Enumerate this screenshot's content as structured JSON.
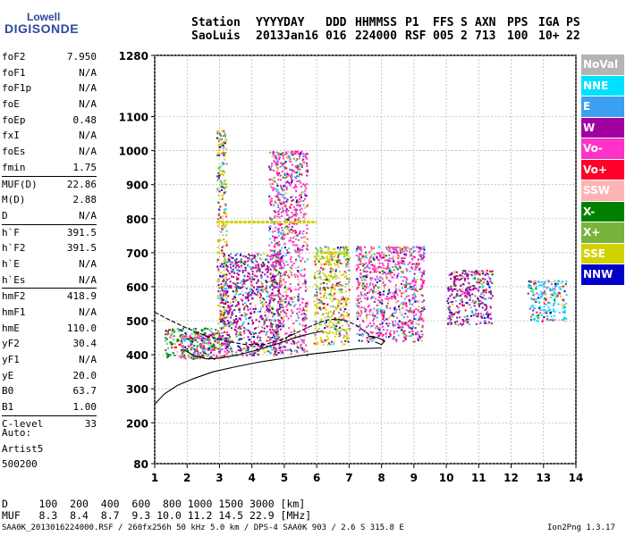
{
  "logo": {
    "line1": "Lowell",
    "line2": "DIGISONDE"
  },
  "header": {
    "labels": [
      {
        "text": "Station",
        "row": 0,
        "x": 0
      },
      {
        "text": "YYYY",
        "row": 0,
        "x": 1
      },
      {
        "text": "DAY",
        "row": 0,
        "x": 2
      },
      {
        "text": "DDD",
        "row": 0,
        "x": 3
      },
      {
        "text": "HHMMSS",
        "row": 0,
        "x": 4
      },
      {
        "text": "P1",
        "row": 0,
        "x": 5
      },
      {
        "text": "FFS",
        "row": 0,
        "x": 6
      },
      {
        "text": "S",
        "row": 0,
        "x": 7
      },
      {
        "text": "AXN",
        "row": 0,
        "x": 8
      },
      {
        "text": "PPS",
        "row": 0,
        "x": 9
      },
      {
        "text": "IGA",
        "row": 0,
        "x": 10
      },
      {
        "text": "PS",
        "row": 0,
        "x": 11
      },
      {
        "text": "SaoLuis",
        "row": 1,
        "x": 0
      },
      {
        "text": "2013",
        "row": 1,
        "x": 1
      },
      {
        "text": "Jan16",
        "row": 1,
        "x": 2
      },
      {
        "text": "016",
        "row": 1,
        "x": 3
      },
      {
        "text": "224000",
        "row": 1,
        "x": 4
      },
      {
        "text": "RSF",
        "row": 1,
        "x": 5
      },
      {
        "text": "005",
        "row": 1,
        "x": 6
      },
      {
        "text": "2",
        "row": 1,
        "x": 7
      },
      {
        "text": "713",
        "row": 1,
        "x": 8
      },
      {
        "text": "100",
        "row": 1,
        "x": 9
      },
      {
        "text": "10+",
        "row": 1,
        "x": 10
      },
      {
        "text": "22",
        "row": 1,
        "x": 11
      }
    ]
  },
  "params": {
    "group1": [
      {
        "label": "foF2",
        "value": "7.950"
      },
      {
        "label": "foF1",
        "value": "N/A"
      },
      {
        "label": "foF1p",
        "value": "N/A"
      },
      {
        "label": "foE",
        "value": "N/A"
      },
      {
        "label": "foEp",
        "value": "0.48"
      },
      {
        "label": "fxI",
        "value": "N/A"
      },
      {
        "label": "foEs",
        "value": "N/A"
      },
      {
        "label": "fmin",
        "value": "1.75"
      }
    ],
    "group2": [
      {
        "label": "MUF(D)",
        "value": "22.86"
      },
      {
        "label": "M(D)",
        "value": "2.88"
      },
      {
        "label": "D",
        "value": "N/A"
      }
    ],
    "group3": [
      {
        "label": "h`F",
        "value": "391.5"
      },
      {
        "label": "h`F2",
        "value": "391.5"
      },
      {
        "label": "h`E",
        "value": "N/A"
      },
      {
        "label": "h`Es",
        "value": "N/A"
      }
    ],
    "group4": [
      {
        "label": "hmF2",
        "value": "418.9"
      },
      {
        "label": "hmF1",
        "value": "N/A"
      },
      {
        "label": "hmE",
        "value": "110.0"
      },
      {
        "label": "yF2",
        "value": "30.4"
      },
      {
        "label": "yF1",
        "value": "N/A"
      },
      {
        "label": "yE",
        "value": "20.0"
      },
      {
        "label": "B0",
        "value": "63.7"
      },
      {
        "label": "B1",
        "value": "1.00"
      }
    ],
    "group5": [
      {
        "label": "C-level",
        "value": "33"
      }
    ]
  },
  "auto": {
    "lines": [
      "Auto:",
      "Artist5",
      "500200"
    ]
  },
  "legend": [
    {
      "label": "NoVal",
      "color": "#b4b4b4"
    },
    {
      "label": "NNE",
      "color": "#00e0ff"
    },
    {
      "label": "E",
      "color": "#3ca0f0"
    },
    {
      "label": "W",
      "color": "#a000a0"
    },
    {
      "label": "Vo-",
      "color": "#ff32c8"
    },
    {
      "label": "Vo+",
      "color": "#ff0028"
    },
    {
      "label": "SSW",
      "color": "#ffb4b4"
    },
    {
      "label": "X-",
      "color": "#008000"
    },
    {
      "label": "X+",
      "color": "#78b43c"
    },
    {
      "label": "SSE",
      "color": "#d2d200"
    },
    {
      "label": "NNW",
      "color": "#0000c8"
    }
  ],
  "bottom": {
    "d_row": "D     100  200  400  600  800 1000 1500 3000 [km]",
    "muf_row": "MUF   8.3  8.4  8.7  9.3 10.0 11.2 14.5 22.9 [MHz]"
  },
  "footer": {
    "left": "SAA0K_2013016224000.RSF / 260fx256h 50 kHz 5.0 km / DPS-4 SAA0K 903 / 2.6 S 315.8 E",
    "right": "Ion2Png 1.3.17"
  },
  "chart_data": {
    "type": "scatter",
    "title": "",
    "xlabel": "",
    "ylabel": "",
    "xlim": [
      1,
      14
    ],
    "ylim": [
      80,
      1280
    ],
    "x_ticks": [
      1,
      2,
      3,
      4,
      5,
      6,
      7,
      8,
      9,
      10,
      11,
      12,
      13,
      14
    ],
    "y_ticks": [
      80,
      200,
      300,
      400,
      500,
      600,
      700,
      800,
      900,
      1000,
      1100,
      1280
    ],
    "grid": true,
    "legend_position": "right",
    "echo_regions": [
      {
        "x": [
          1.3,
          3.0
        ],
        "y": [
          390,
          480
        ],
        "dominant": "#008000"
      },
      {
        "x": [
          1.8,
          3.3
        ],
        "y": [
          390,
          460
        ],
        "dominant": "#ff32c8"
      },
      {
        "x": [
          2.9,
          3.2
        ],
        "y": [
          480,
          1060
        ],
        "dominant": "#d2d200"
      },
      {
        "x": [
          3.0,
          4.9
        ],
        "y": [
          400,
          700
        ],
        "dominant": "#a000a0"
      },
      {
        "x": [
          4.5,
          5.7
        ],
        "y": [
          400,
          1000
        ],
        "dominant": "#ff32c8"
      },
      {
        "x": [
          5.9,
          7.0
        ],
        "y": [
          430,
          720
        ],
        "dominant": "#d2d200"
      },
      {
        "x": [
          7.2,
          9.3
        ],
        "y": [
          440,
          720
        ],
        "dominant": "#ff32c8"
      },
      {
        "x": [
          10.0,
          11.4
        ],
        "y": [
          490,
          650
        ],
        "dominant": "#a000a0"
      },
      {
        "x": [
          12.5,
          13.7
        ],
        "y": [
          500,
          620
        ],
        "dominant": "#00e0ff"
      }
    ],
    "horizontal_bands": [
      {
        "x": [
          2.9,
          4.9
        ],
        "y": 790,
        "color": "#d2d200"
      },
      {
        "x": [
          5.0,
          6.0
        ],
        "y": 790,
        "color": "#d2d200"
      },
      {
        "x": [
          6.1,
          6.9
        ],
        "y": 700,
        "color": "#d2d200"
      }
    ],
    "trace_curves": [
      {
        "name": "",
        "x": [
          1.0,
          1.3,
          1.7,
          2.2,
          2.8,
          3.5,
          4.2,
          5.0,
          5.8,
          6.6,
          7.3,
          8.0
        ],
        "y": [
          255,
          285,
          310,
          330,
          350,
          365,
          378,
          390,
          402,
          410,
          418,
          420
        ]
      },
      {
        "name": "",
        "x": [
          1.0,
          1.4,
          2.0,
          2.6,
          3.2,
          3.8,
          4.4,
          5.0,
          5.6,
          6.0,
          6.3,
          6.6,
          6.9,
          7.2,
          7.5,
          7.8
        ],
        "y": [
          525,
          505,
          478,
          455,
          440,
          430,
          430,
          448,
          475,
          492,
          502,
          505,
          500,
          488,
          468,
          445
        ]
      },
      {
        "name": "",
        "x": [
          1.9,
          2.2,
          2.6,
          3.0,
          3.6,
          4.2,
          4.8,
          5.4,
          5.8,
          6.2
        ],
        "y": [
          415,
          398,
          388,
          390,
          400,
          415,
          433,
          452,
          462,
          470
        ]
      },
      {
        "name": "",
        "x": [
          7.6,
          7.9,
          8.1,
          8.0,
          7.8
        ],
        "y": [
          455,
          450,
          440,
          430,
          438
        ]
      }
    ]
  }
}
